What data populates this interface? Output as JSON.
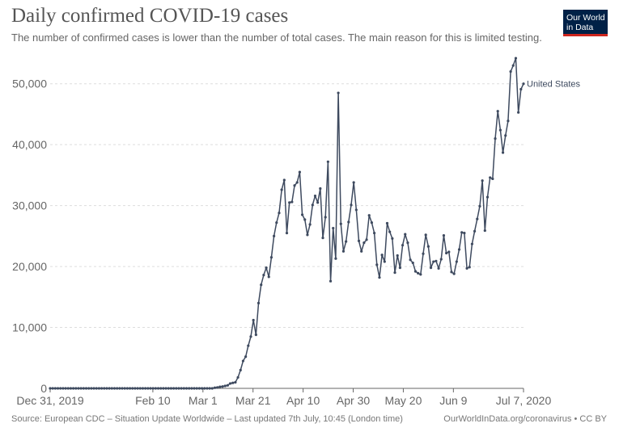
{
  "title": "Daily confirmed COVID-19 cases",
  "subtitle": "The number of confirmed cases is lower than the number of total cases. The main reason for this is limited testing.",
  "logo": {
    "line1": "Our World",
    "line2": "in Data"
  },
  "footer": {
    "source": "Source: European CDC – Situation Update Worldwide – Last updated 7th July, 10:45 (London time)",
    "license": "OurWorldInData.org/coronavirus • CC BY"
  },
  "colors": {
    "line": "#3e4a5f",
    "grid": "#dddddd",
    "axis": "#666666",
    "logo_bg": "#002147",
    "logo_accent": "#ce261e"
  },
  "chart_data": {
    "type": "line",
    "title": "Daily confirmed COVID-19 cases",
    "xlabel": "",
    "ylabel": "",
    "x_tick_labels": [
      "Dec 31, 2019",
      "Feb 10",
      "Mar 1",
      "Mar 21",
      "Apr 10",
      "Apr 30",
      "May 20",
      "Jun 9",
      "Jul 7, 2020"
    ],
    "y_tick_labels": [
      "0",
      "10,000",
      "20,000",
      "30,000",
      "40,000",
      "50,000"
    ],
    "ylim": [
      0,
      55000
    ],
    "grid": "horizontal",
    "start_date": "2019-12-31",
    "end_date": "2020-07-07",
    "series": [
      {
        "name": "United States",
        "values": [
          0,
          0,
          0,
          0,
          0,
          0,
          0,
          0,
          0,
          0,
          0,
          0,
          0,
          0,
          0,
          0,
          0,
          0,
          0,
          0,
          0,
          0,
          0,
          0,
          0,
          0,
          0,
          0,
          0,
          0,
          0,
          0,
          0,
          0,
          0,
          0,
          0,
          0,
          0,
          0,
          0,
          0,
          0,
          0,
          0,
          0,
          0,
          0,
          0,
          0,
          0,
          0,
          0,
          0,
          0,
          0,
          0,
          0,
          0,
          0,
          0,
          0,
          0,
          0,
          100,
          150,
          250,
          300,
          400,
          500,
          800,
          900,
          1000,
          1800,
          3000,
          4500,
          5200,
          7000,
          8500,
          11200,
          8800,
          14000,
          17000,
          18600,
          19800,
          18300,
          21500,
          25000,
          27200,
          28800,
          32600,
          34200,
          25500,
          30500,
          30600,
          33300,
          33800,
          35500,
          28500,
          27700,
          25200,
          26900,
          30100,
          31600,
          30500,
          32800,
          24700,
          28100,
          37200,
          17600,
          26300,
          21300,
          48500,
          27000,
          22500,
          24100,
          27300,
          30100,
          33800,
          29300,
          24200,
          22500,
          23900,
          24400,
          28400,
          27200,
          25500,
          20300,
          18200,
          21900,
          20800,
          27100,
          25700,
          24600,
          19000,
          21800,
          19800,
          23500,
          25300,
          23900,
          21100,
          20600,
          19200,
          18900,
          18700,
          22100,
          25200,
          23300,
          19800,
          20800,
          20900,
          19700,
          21200,
          25100,
          22200,
          22400,
          19100,
          18800,
          20800,
          22800,
          25600,
          25500,
          19700,
          19900,
          23700,
          25800,
          27800,
          29900,
          34100,
          25900,
          31400,
          34600,
          34400,
          41000,
          45500,
          42400,
          38700,
          41500,
          43900,
          52000,
          53000,
          54200,
          45300,
          49100,
          50000
        ]
      }
    ]
  }
}
